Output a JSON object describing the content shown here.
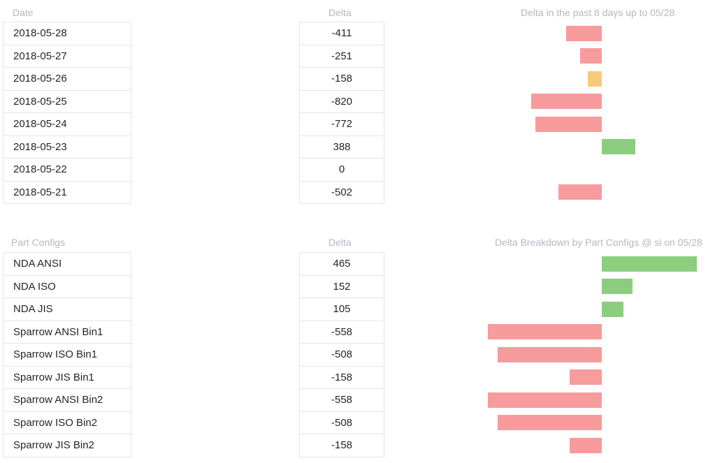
{
  "section1": {
    "col1_header": "Date",
    "col2_header": "Delta",
    "chart_title": "Delta in the past 8 days up to 05/28",
    "rows": [
      {
        "label": "2018-05-28",
        "value": "-411"
      },
      {
        "label": "2018-05-27",
        "value": "-251"
      },
      {
        "label": "2018-05-26",
        "value": "-158"
      },
      {
        "label": "2018-05-25",
        "value": "-820"
      },
      {
        "label": "2018-05-24",
        "value": "-772"
      },
      {
        "label": "2018-05-23",
        "value": "388"
      },
      {
        "label": "2018-05-22",
        "value": "0"
      },
      {
        "label": "2018-05-21",
        "value": "-502"
      }
    ]
  },
  "section2": {
    "col1_header": "Part Configs",
    "col2_header": "Delta",
    "chart_title": "Delta Breakdown by Part Configs @ si on 05/28",
    "rows": [
      {
        "label": "NDA ANSI",
        "value": "465"
      },
      {
        "label": "NDA ISO",
        "value": "152"
      },
      {
        "label": "NDA JIS",
        "value": "105"
      },
      {
        "label": "Sparrow ANSI Bin1",
        "value": "-558"
      },
      {
        "label": "Sparrow ISO Bin1",
        "value": "-508"
      },
      {
        "label": "Sparrow JIS Bin1",
        "value": "-158"
      },
      {
        "label": "Sparrow ANSI Bin2",
        "value": "-558"
      },
      {
        "label": "Sparrow ISO Bin2",
        "value": "-508"
      },
      {
        "label": "Sparrow JIS Bin2",
        "value": "-158"
      }
    ]
  },
  "colors": {
    "negative": "#f79b9d",
    "negative_small": "#f7c97e",
    "positive": "#8ccd80",
    "grid": "#e3e5e8",
    "header_text": "#b3b8c0"
  },
  "chart_data": [
    {
      "type": "bar",
      "title": "Delta in the past 8 days up to 05/28",
      "categories": [
        "2018-05-28",
        "2018-05-27",
        "2018-05-26",
        "2018-05-25",
        "2018-05-24",
        "2018-05-23",
        "2018-05-22",
        "2018-05-21"
      ],
      "values": [
        -411,
        -251,
        -158,
        -820,
        -772,
        388,
        0,
        -502
      ],
      "bar_colors": [
        "#f79b9d",
        "#f79b9d",
        "#f7c97e",
        "#f79b9d",
        "#f79b9d",
        "#8ccd80",
        "#8ccd80",
        "#f79b9d"
      ]
    },
    {
      "type": "bar",
      "title": "Delta Breakdown by Part Configs @ si on 05/28",
      "categories": [
        "NDA ANSI",
        "NDA ISO",
        "NDA JIS",
        "Sparrow ANSI Bin1",
        "Sparrow ISO Bin1",
        "Sparrow JIS Bin1",
        "Sparrow ANSI Bin2",
        "Sparrow ISO Bin2",
        "Sparrow JIS Bin2"
      ],
      "values": [
        465,
        152,
        105,
        -558,
        -508,
        -158,
        -558,
        -508,
        -158
      ],
      "bar_colors": [
        "#8ccd80",
        "#8ccd80",
        "#8ccd80",
        "#f79b9d",
        "#f79b9d",
        "#f79b9d",
        "#f79b9d",
        "#f79b9d",
        "#f79b9d"
      ]
    }
  ]
}
